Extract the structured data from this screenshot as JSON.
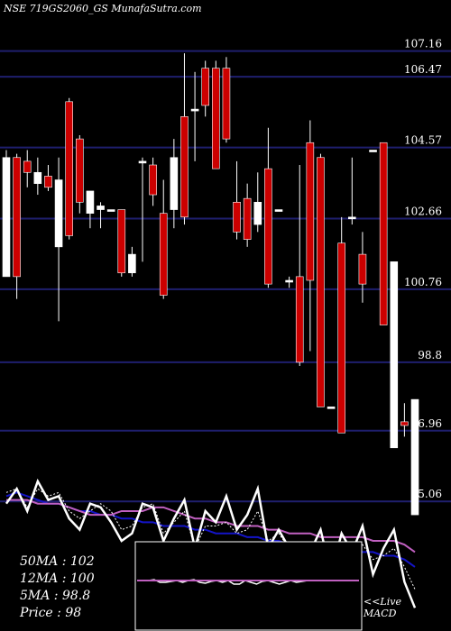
{
  "title": "NSE 719GS2060_GS MunafaSutra.com",
  "stats": {
    "ma50": "50MA : 102",
    "ma12": "12MA : 100",
    "ma5": "5MA : 98.8",
    "price": "Price   : 98"
  },
  "macd_label": {
    "line1": "<<Live",
    "line2": "MACD"
  },
  "colors": {
    "background": "#000000",
    "grid": "#1f1f6e",
    "up_candle": "#ffffff",
    "down_candle": "#cc0000",
    "ma50": "#1414c8",
    "ma12": "#c060c0",
    "ma5": "#ffffff",
    "macd": "#c060c0"
  },
  "chart_data": {
    "type": "candlestick",
    "title": "NSE 719GS2060_GS MunafaSutra.com",
    "ylim": [
      94,
      108
    ],
    "y_ticks": [
      107.16,
      106.47,
      104.57,
      102.66,
      100.76,
      98.8,
      96.96,
      95.06
    ],
    "grid": true,
    "candles": [
      {
        "o": 101.1,
        "h": 104.5,
        "l": 101.1,
        "c": 104.3
      },
      {
        "o": 104.3,
        "h": 104.4,
        "l": 100.5,
        "c": 101.1
      },
      {
        "o": 104.2,
        "h": 104.5,
        "l": 103.5,
        "c": 103.9
      },
      {
        "o": 103.6,
        "h": 104.3,
        "l": 103.3,
        "c": 103.9
      },
      {
        "o": 103.8,
        "h": 104.1,
        "l": 103.4,
        "c": 103.5
      },
      {
        "o": 101.9,
        "h": 104.3,
        "l": 99.9,
        "c": 103.7
      },
      {
        "o": 105.8,
        "h": 105.9,
        "l": 102.1,
        "c": 102.2
      },
      {
        "o": 104.8,
        "h": 104.9,
        "l": 102.8,
        "c": 103.1
      },
      {
        "o": 102.8,
        "h": 103.4,
        "l": 102.4,
        "c": 103.4
      },
      {
        "o": 102.9,
        "h": 103.1,
        "l": 102.4,
        "c": 103.0
      },
      {
        "o": 102.9,
        "h": 102.9,
        "l": 102.9,
        "c": 102.9
      },
      {
        "o": 102.9,
        "h": 102.9,
        "l": 101.1,
        "c": 101.2
      },
      {
        "o": 101.2,
        "h": 101.9,
        "l": 101.1,
        "c": 101.7
      },
      {
        "o": 104.2,
        "h": 104.3,
        "l": 101.5,
        "c": 104.2
      },
      {
        "o": 104.1,
        "h": 104.3,
        "l": 103.0,
        "c": 103.3
      },
      {
        "o": 102.8,
        "h": 103.7,
        "l": 100.5,
        "c": 100.6
      },
      {
        "o": 102.9,
        "h": 104.8,
        "l": 102.4,
        "c": 104.3
      },
      {
        "o": 105.4,
        "h": 107.1,
        "l": 102.5,
        "c": 102.7
      },
      {
        "o": 105.6,
        "h": 106.6,
        "l": 104.2,
        "c": 105.6
      },
      {
        "o": 106.7,
        "h": 106.9,
        "l": 105.4,
        "c": 105.7
      },
      {
        "o": 106.7,
        "h": 106.9,
        "l": 104.0,
        "c": 104.0
      },
      {
        "o": 106.7,
        "h": 107.0,
        "l": 104.7,
        "c": 104.8
      },
      {
        "o": 103.1,
        "h": 104.2,
        "l": 102.1,
        "c": 102.3
      },
      {
        "o": 103.2,
        "h": 103.6,
        "l": 101.9,
        "c": 102.1
      },
      {
        "o": 102.5,
        "h": 103.9,
        "l": 102.3,
        "c": 103.1
      },
      {
        "o": 104.0,
        "h": 105.1,
        "l": 100.8,
        "c": 100.9
      },
      {
        "o": 102.9,
        "h": 102.9,
        "l": 102.9,
        "c": 102.9
      },
      {
        "o": 101.0,
        "h": 101.1,
        "l": 100.8,
        "c": 101.0
      },
      {
        "o": 101.1,
        "h": 104.1,
        "l": 98.7,
        "c": 98.8
      },
      {
        "o": 104.7,
        "h": 105.3,
        "l": 99.1,
        "c": 101.0
      },
      {
        "o": 104.3,
        "h": 104.4,
        "l": 97.6,
        "c": 97.6
      },
      {
        "o": 97.6,
        "h": 97.6,
        "l": 97.6,
        "c": 97.6
      },
      {
        "o": 102.0,
        "h": 102.7,
        "l": 96.9,
        "c": 96.9
      },
      {
        "o": 102.7,
        "h": 104.3,
        "l": 102.5,
        "c": 102.7
      },
      {
        "o": 101.7,
        "h": 102.3,
        "l": 100.4,
        "c": 100.9
      },
      {
        "o": 104.5,
        "h": 104.5,
        "l": 104.5,
        "c": 104.5
      },
      {
        "o": 104.7,
        "h": 104.7,
        "l": 99.8,
        "c": 99.8
      },
      {
        "o": 96.5,
        "h": 101.5,
        "l": 96.5,
        "c": 101.5
      },
      {
        "o": 97.2,
        "h": 97.7,
        "l": 96.8,
        "c": 97.1
      },
      {
        "o": 94.7,
        "h": 97.8,
        "l": 94.7,
        "c": 97.8
      }
    ],
    "ma_lines": [
      {
        "name": "50MA",
        "values": [
          95.2,
          95.3,
          95.2,
          95.1,
          95.0,
          95.0,
          94.9,
          94.8,
          94.8,
          94.7,
          94.7,
          94.6,
          94.6,
          94.5,
          94.5,
          94.4,
          94.4,
          94.4,
          94.3,
          94.3,
          94.2,
          94.2,
          94.2,
          94.1,
          94.1,
          94.0,
          94.0,
          93.9,
          93.8,
          93.8,
          93.7,
          93.7,
          93.8,
          93.7,
          93.7,
          93.7,
          93.6,
          93.6,
          93.5,
          93.3
        ]
      },
      {
        "name": "12MA",
        "values": [
          95.1,
          95.1,
          95.1,
          95.0,
          95.0,
          95.0,
          94.9,
          94.8,
          94.7,
          94.7,
          94.7,
          94.8,
          94.8,
          94.8,
          94.9,
          94.9,
          94.8,
          94.7,
          94.6,
          94.6,
          94.5,
          94.5,
          94.4,
          94.4,
          94.4,
          94.3,
          94.3,
          94.2,
          94.2,
          94.2,
          94.1,
          94.1,
          94.1,
          94.1,
          94.1,
          94.0,
          94.0,
          94.0,
          93.9,
          93.7
        ]
      },
      {
        "name": "5MA",
        "values": [
          95.3,
          95.4,
          94.9,
          95.4,
          95.2,
          95.3,
          94.8,
          94.6,
          94.8,
          95.0,
          94.8,
          94.3,
          94.4,
          94.9,
          95.0,
          94.2,
          94.5,
          94.8,
          93.8,
          94.4,
          94.4,
          94.5,
          94.2,
          94.3,
          94.8,
          94.0,
          94.2,
          93.8,
          93.4,
          93.3,
          93.8,
          93.4,
          93.8,
          93.6,
          93.9,
          93.5,
          93.6,
          93.8,
          93.3,
          92.7
        ]
      },
      {
        "name": "Price",
        "values": [
          95.0,
          95.4,
          94.8,
          95.6,
          95.1,
          95.2,
          94.6,
          94.3,
          95.0,
          94.9,
          94.5,
          94.0,
          94.2,
          95.0,
          94.9,
          94.0,
          94.6,
          95.1,
          93.8,
          94.8,
          94.5,
          95.2,
          94.3,
          94.7,
          95.4,
          93.8,
          94.3,
          93.8,
          93.2,
          93.7,
          94.3,
          93.1,
          94.2,
          93.7,
          94.4,
          93.1,
          93.8,
          94.3,
          92.9,
          92.2
        ]
      }
    ],
    "macd": [
      0.3,
      0.3,
      0.3,
      0.35,
      0.2,
      0.2,
      0.25,
      0.3,
      0.2,
      0.3,
      0.35,
      0.2,
      0.15,
      0.25,
      0.3,
      0.2,
      0.3,
      0.1,
      0.1,
      0.3,
      0.2,
      0.1,
      0.25,
      0.3,
      0.2,
      0.1,
      0.2,
      0.3,
      0.2,
      0.25,
      0.3,
      0.3,
      0.3,
      0.3,
      0.3,
      0.3,
      0.3,
      0.3,
      0.3,
      0.3
    ]
  }
}
